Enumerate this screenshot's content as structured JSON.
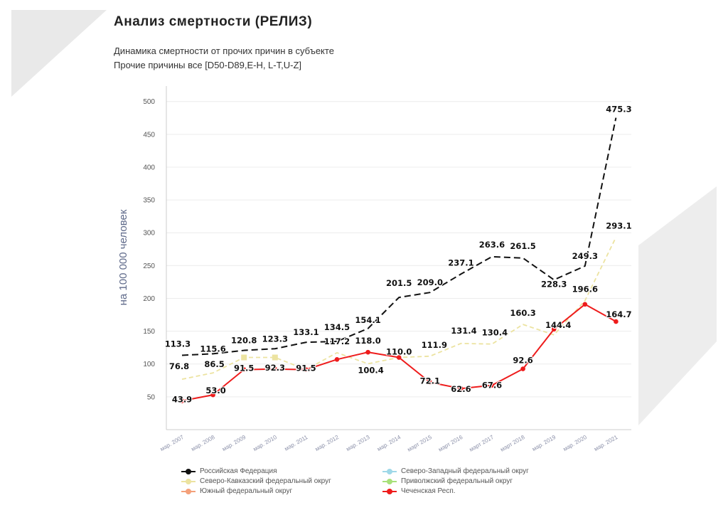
{
  "page": {
    "title": "Анализ смертности (РЕЛИЗ)",
    "subtitle_line1": "Динамика смертности от прочих причин в субъекте",
    "subtitle_line2": "Прочие причины все [D50-D89,E-H, L-T,U-Z]"
  },
  "chart_data": {
    "type": "line",
    "ylabel": "на 100 000 человек",
    "ylim": [
      0,
      500
    ],
    "yticks": [
      50,
      100,
      150,
      200,
      250,
      300,
      350,
      400,
      450,
      500
    ],
    "categories": [
      "мар. 2007",
      "мар. 2008",
      "мар. 2009",
      "мар. 2010",
      "мар. 2011",
      "мар. 2012",
      "мар. 2013",
      "мар. 2014",
      "март 2015",
      "март 2016",
      "март 2017",
      "март 2018",
      "мар. 2019",
      "мар. 2020",
      "мар. 2021"
    ],
    "series": [
      {
        "name": "Российская Федерация",
        "color": "#111111",
        "dash": true,
        "values": [
          113.3,
          115.6,
          120.8,
          123.3,
          133.1,
          134.5,
          154.1,
          201.5,
          209.0,
          237.1,
          263.6,
          261.5,
          228.3,
          249.3,
          475.3
        ],
        "labels": [
          "113.3",
          "115.6",
          "120.8",
          "123.3",
          "133.1",
          "134.5",
          "154.1",
          "201.5",
          "209.0",
          "237.1",
          "263.6",
          "261.5",
          "228.3",
          "249.3",
          "475.3"
        ]
      },
      {
        "name": "Северо-Кавказский федеральный округ",
        "color": "#ece3a0",
        "dash": true,
        "values": [
          76.8,
          86.5,
          110.0,
          110.0,
          91.5,
          117.2,
          100.4,
          110.0,
          111.9,
          131.4,
          130.4,
          160.3,
          144.4,
          196.6,
          293.1
        ],
        "labels": [
          "76.8",
          "86.5",
          "",
          "",
          "",
          "117.2",
          "100.4",
          "",
          "111.9",
          "131.4",
          "130.4",
          "160.3",
          "144.4",
          "196.6",
          "293.1"
        ]
      },
      {
        "name": "Чеченская Респ.",
        "color": "#ee1c1c",
        "dash": false,
        "values": [
          43.9,
          53.0,
          91.5,
          92.3,
          91.5,
          107.0,
          118.0,
          110.0,
          72.1,
          62.6,
          67.6,
          92.6,
          153.0,
          191.0,
          164.7
        ],
        "labels": [
          "43.9",
          "53.0",
          "91.5",
          "92.3",
          "91.5",
          "",
          "118.0",
          "110.0",
          "72.1",
          "62.6",
          "67.6",
          "92.6",
          "",
          "",
          "164.7"
        ]
      }
    ],
    "legend": [
      {
        "name": "Российская Федерация",
        "color": "#111111"
      },
      {
        "name": "Северо-Западный федеральный округ",
        "color": "#9fd8e8"
      },
      {
        "name": "Северо-Кавказский федеральный округ",
        "color": "#ece3a0"
      },
      {
        "name": "Приволжский федеральный округ",
        "color": "#a8e07a"
      },
      {
        "name": "Южный федеральный округ",
        "color": "#f4a07a"
      },
      {
        "name": "Чеченская Респ.",
        "color": "#ee1c1c"
      }
    ]
  }
}
